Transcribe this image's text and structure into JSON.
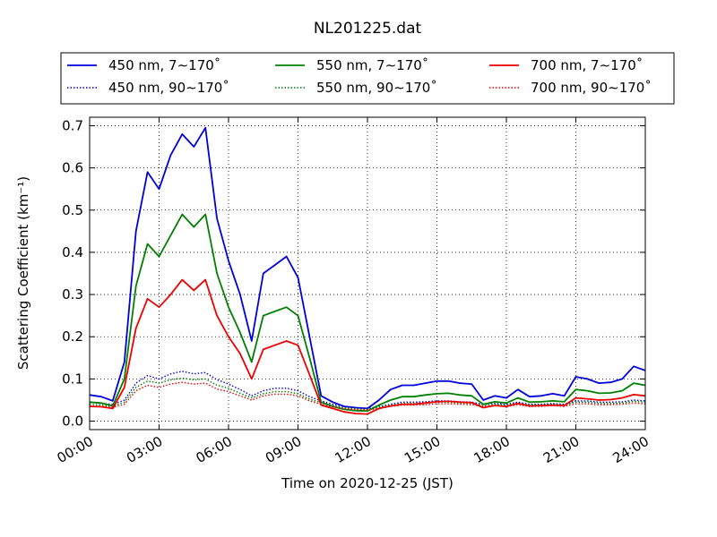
{
  "chart_data": {
    "type": "line",
    "title": "NL201225.dat",
    "xlabel": "Time on 2020-12-25 (JST)",
    "ylabel": "Scattering Coefficient (km⁻¹)",
    "xlim": [
      "00:00",
      "24:00"
    ],
    "ylim": [
      -0.02,
      0.72
    ],
    "x_ticks": [
      "00:00",
      "03:00",
      "06:00",
      "09:00",
      "12:00",
      "15:00",
      "18:00",
      "21:00",
      "24:00"
    ],
    "y_ticks": [
      "0.0",
      "0.1",
      "0.2",
      "0.3",
      "0.4",
      "0.5",
      "0.6",
      "0.7"
    ],
    "grid": true,
    "legend_position": "top",
    "x": [
      "00:00",
      "00:30",
      "01:00",
      "01:30",
      "02:00",
      "02:30",
      "03:00",
      "03:30",
      "04:00",
      "04:30",
      "05:00",
      "05:30",
      "06:00",
      "06:30",
      "07:00",
      "07:30",
      "08:00",
      "08:30",
      "09:00",
      "09:30",
      "10:00",
      "10:30",
      "11:00",
      "11:30",
      "12:00",
      "12:30",
      "13:00",
      "13:30",
      "14:00",
      "14:30",
      "15:00",
      "15:30",
      "16:00",
      "16:30",
      "17:00",
      "17:30",
      "18:00",
      "18:30",
      "19:00",
      "19:30",
      "20:00",
      "20:30",
      "21:00",
      "21:30",
      "22:00",
      "22:30",
      "23:00",
      "23:30",
      "24:00"
    ],
    "series": [
      {
        "name": "450 nm, 7∼170˚",
        "color": "#0000dd",
        "style": "solid",
        "values": [
          0.062,
          0.058,
          0.048,
          0.14,
          0.45,
          0.59,
          0.55,
          0.63,
          0.68,
          0.65,
          0.695,
          0.48,
          0.38,
          0.3,
          0.19,
          0.35,
          0.37,
          0.39,
          0.34,
          0.2,
          0.06,
          0.045,
          0.035,
          0.032,
          0.03,
          0.05,
          0.075,
          0.085,
          0.085,
          0.09,
          0.095,
          0.095,
          0.09,
          0.088,
          0.05,
          0.06,
          0.055,
          0.075,
          0.058,
          0.06,
          0.065,
          0.06,
          0.105,
          0.1,
          0.09,
          0.092,
          0.1,
          0.13,
          0.12
        ]
      },
      {
        "name": "450 nm, 90∼170˚",
        "color": "#0000dd",
        "style": "dotted",
        "values": [
          0.045,
          0.042,
          0.04,
          0.05,
          0.09,
          0.108,
          0.1,
          0.112,
          0.118,
          0.112,
          0.115,
          0.098,
          0.088,
          0.075,
          0.06,
          0.072,
          0.078,
          0.078,
          0.072,
          0.058,
          0.048,
          0.04,
          0.035,
          0.032,
          0.03,
          0.035,
          0.04,
          0.045,
          0.045,
          0.046,
          0.048,
          0.048,
          0.046,
          0.045,
          0.04,
          0.042,
          0.04,
          0.045,
          0.04,
          0.04,
          0.042,
          0.04,
          0.048,
          0.048,
          0.045,
          0.045,
          0.046,
          0.05,
          0.048
        ]
      },
      {
        "name": "550 nm, 7∼170˚",
        "color": "#008000",
        "style": "solid",
        "values": [
          0.045,
          0.043,
          0.036,
          0.1,
          0.32,
          0.42,
          0.39,
          0.44,
          0.49,
          0.46,
          0.49,
          0.35,
          0.27,
          0.21,
          0.14,
          0.25,
          0.26,
          0.27,
          0.25,
          0.15,
          0.045,
          0.035,
          0.028,
          0.025,
          0.024,
          0.038,
          0.05,
          0.058,
          0.058,
          0.062,
          0.065,
          0.066,
          0.062,
          0.06,
          0.04,
          0.046,
          0.043,
          0.055,
          0.045,
          0.046,
          0.048,
          0.046,
          0.075,
          0.072,
          0.066,
          0.067,
          0.072,
          0.09,
          0.085
        ]
      },
      {
        "name": "550 nm, 90∼170˚",
        "color": "#008000",
        "style": "dotted",
        "values": [
          0.04,
          0.038,
          0.036,
          0.045,
          0.08,
          0.095,
          0.09,
          0.098,
          0.102,
          0.098,
          0.1,
          0.085,
          0.078,
          0.066,
          0.055,
          0.065,
          0.07,
          0.07,
          0.065,
          0.052,
          0.044,
          0.037,
          0.032,
          0.03,
          0.028,
          0.033,
          0.038,
          0.042,
          0.042,
          0.043,
          0.045,
          0.045,
          0.043,
          0.042,
          0.038,
          0.04,
          0.038,
          0.042,
          0.038,
          0.038,
          0.04,
          0.038,
          0.045,
          0.045,
          0.042,
          0.042,
          0.043,
          0.047,
          0.045
        ]
      },
      {
        "name": "700 nm, 7∼170˚",
        "color": "#ee0000",
        "style": "solid",
        "values": [
          0.035,
          0.034,
          0.03,
          0.08,
          0.22,
          0.29,
          0.27,
          0.3,
          0.335,
          0.31,
          0.335,
          0.25,
          0.2,
          0.16,
          0.1,
          0.17,
          0.18,
          0.19,
          0.18,
          0.11,
          0.038,
          0.03,
          0.022,
          0.018,
          0.017,
          0.03,
          0.036,
          0.04,
          0.04,
          0.043,
          0.046,
          0.047,
          0.045,
          0.044,
          0.032,
          0.037,
          0.035,
          0.042,
          0.036,
          0.037,
          0.038,
          0.037,
          0.055,
          0.053,
          0.05,
          0.051,
          0.055,
          0.063,
          0.06
        ]
      },
      {
        "name": "700 nm, 90∼170˚",
        "color": "#ee0000",
        "style": "dotted",
        "values": [
          0.036,
          0.035,
          0.033,
          0.04,
          0.072,
          0.085,
          0.08,
          0.088,
          0.092,
          0.088,
          0.09,
          0.076,
          0.07,
          0.06,
          0.05,
          0.06,
          0.064,
          0.064,
          0.06,
          0.048,
          0.04,
          0.034,
          0.03,
          0.028,
          0.026,
          0.03,
          0.035,
          0.038,
          0.038,
          0.039,
          0.041,
          0.041,
          0.04,
          0.039,
          0.035,
          0.037,
          0.035,
          0.039,
          0.035,
          0.035,
          0.037,
          0.035,
          0.041,
          0.041,
          0.039,
          0.039,
          0.04,
          0.043,
          0.041
        ]
      }
    ]
  }
}
